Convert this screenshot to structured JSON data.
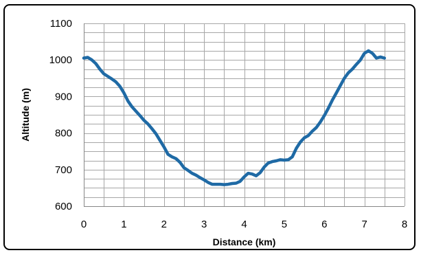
{
  "chart_data": {
    "type": "line",
    "title": "",
    "xlabel": "Distance (km)",
    "ylabel": "Altitude (m)",
    "xlim": [
      0,
      8
    ],
    "ylim": [
      600,
      1100
    ],
    "x_ticks": [
      0,
      1,
      2,
      3,
      4,
      5,
      6,
      7,
      8
    ],
    "y_ticks": [
      600,
      700,
      800,
      900,
      1000,
      1100
    ],
    "grid": true,
    "legend": "none",
    "colors": {
      "series": "#1f6aa5",
      "grid": "#a6a6a6",
      "frame": "#000000"
    },
    "series": [
      {
        "x": [
          0,
          0.1,
          0.2,
          0.3,
          0.4,
          0.5,
          0.6,
          0.7,
          0.8,
          0.9,
          1.0,
          1.1,
          1.2,
          1.3,
          1.4,
          1.5,
          1.6,
          1.7,
          1.8,
          1.9,
          2.0,
          2.1,
          2.2,
          2.3,
          2.4,
          2.5,
          2.6,
          2.7,
          2.8,
          2.9,
          3.0,
          3.1,
          3.2,
          3.3,
          3.4,
          3.5,
          3.6,
          3.7,
          3.8,
          3.9,
          4.0,
          4.1,
          4.2,
          4.3,
          4.4,
          4.5,
          4.6,
          4.7,
          4.8,
          4.9,
          5.0,
          5.1,
          5.2,
          5.3,
          5.4,
          5.5,
          5.6,
          5.7,
          5.8,
          5.9,
          6.0,
          6.1,
          6.2,
          6.3,
          6.4,
          6.5,
          6.6,
          6.7,
          6.8,
          6.9,
          7.0,
          7.1,
          7.2,
          7.3,
          7.4,
          7.5
        ],
        "y": [
          1005,
          1007,
          1000,
          990,
          975,
          962,
          955,
          948,
          940,
          928,
          910,
          888,
          872,
          860,
          848,
          835,
          825,
          812,
          798,
          780,
          762,
          742,
          735,
          730,
          720,
          705,
          698,
          690,
          685,
          678,
          672,
          665,
          660,
          660,
          660,
          659,
          660,
          662,
          663,
          668,
          680,
          690,
          688,
          683,
          692,
          707,
          718,
          722,
          724,
          727,
          726,
          727,
          735,
          758,
          775,
          787,
          793,
          805,
          815,
          830,
          848,
          868,
          890,
          910,
          930,
          950,
          965,
          975,
          988,
          1000,
          1018,
          1025,
          1018,
          1005,
          1008,
          1005
        ]
      }
    ]
  }
}
